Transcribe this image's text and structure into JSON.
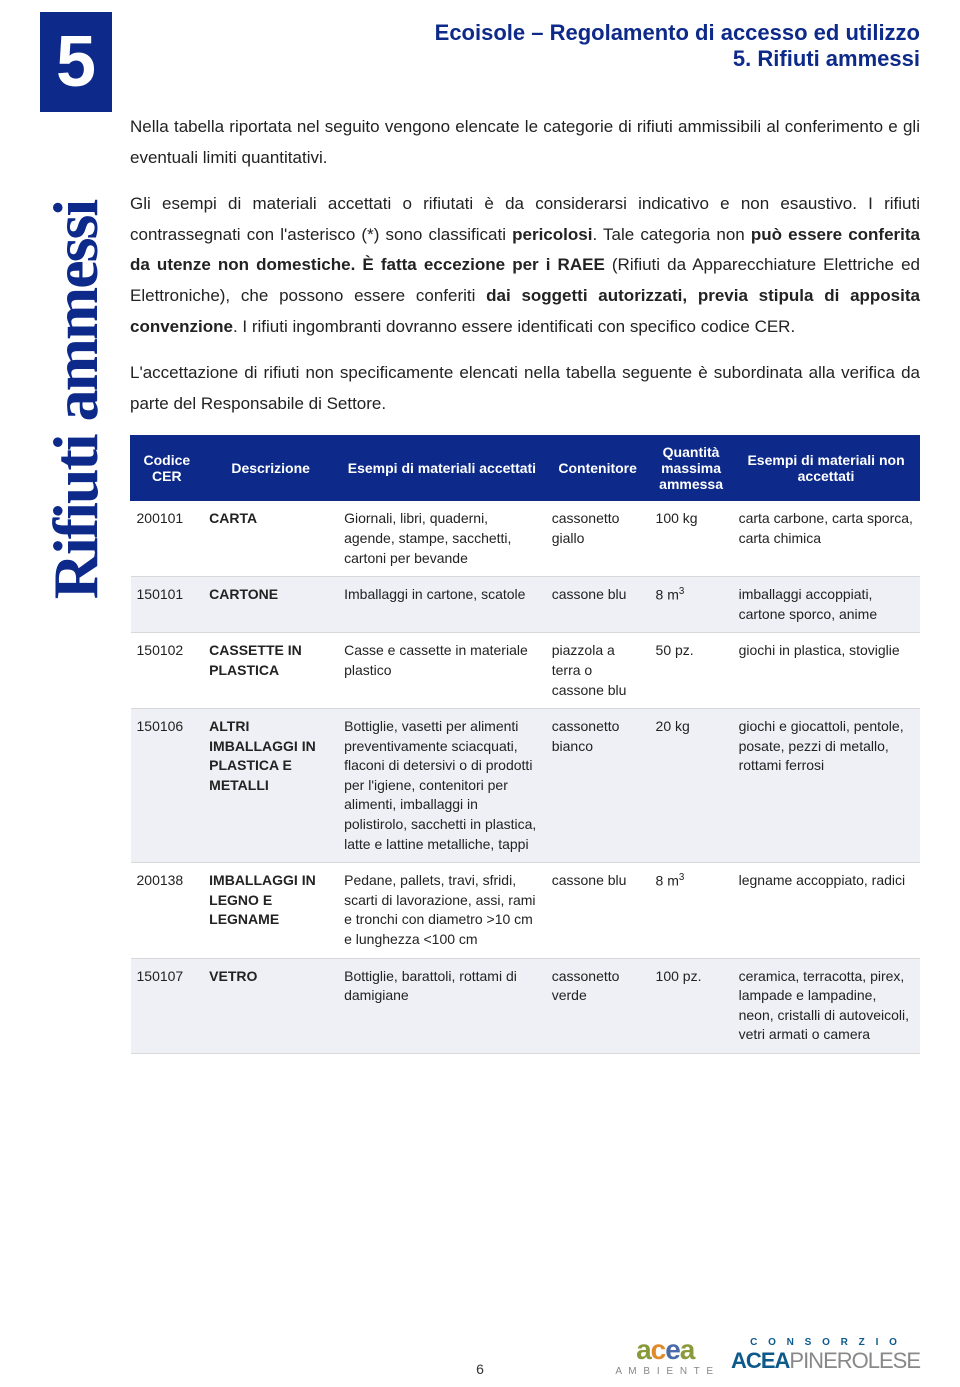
{
  "colors": {
    "brand_blue": "#0d2a8a",
    "row_alt_bg": "#eef0f6",
    "border": "#d8d8d8",
    "text": "#222222",
    "logo_green": "#8a9a3a",
    "logo_orange": "#e08a2a",
    "logo_lightblue": "#4a6aa8",
    "logo_consblue": "#0d5a8a"
  },
  "chapter_number": "5",
  "header": {
    "line1": "Ecoisole – Regolamento di accesso ed utilizzo",
    "line2": "5. Rifiuti ammessi"
  },
  "vertical_title": "Rifiuti ammessi",
  "paragraphs": {
    "p1": "Nella tabella riportata nel seguito vengono elencate le categorie di rifiuti ammissibili al conferimento e gli eventuali limiti quantitativi.",
    "p2_pre": "Gli esempi di materiali accettati o rifiutati è da considerarsi indicativo e non esaustivo. I rifiuti contrassegnati con l'asterisco (*) sono classificati ",
    "p2_bold1": "pericolosi",
    "p2_mid1": ". Tale categoria non ",
    "p2_bold2": "può essere conferita da utenze non domestiche. È fatta eccezione per i RAEE ",
    "p2_mid2": "(Rifiuti da Apparecchiature Elettriche ed Elettroniche), che possono essere conferiti ",
    "p2_bold3": "dai soggetti autorizzati, previa stipula di apposita convenzione",
    "p2_end": ". I rifiuti ingombranti dovranno essere identificati con specifico codice CER.",
    "p3": "L'accettazione di rifiuti non specificamente elencati nella tabella seguente è subordinata alla verifica da parte del Responsabile di Settore."
  },
  "table": {
    "columns": [
      "Codice CER",
      "Descrizione",
      "Esempi di materiali accettati",
      "Contenitore",
      "Quantità massima ammessa",
      "Esempi di materiali non accettati"
    ],
    "rows": [
      {
        "code": "200101",
        "desc": "CARTA",
        "accepted": "Giornali, libri, quaderni, agende, stampe, sacchetti, cartoni per bevande",
        "container": "cassonetto giallo",
        "qty": "100 kg",
        "rejected": "carta carbone, carta sporca, carta chimica"
      },
      {
        "code": "150101",
        "desc": "CARTONE",
        "accepted": "Imballaggi in cartone, scatole",
        "container": "cassone blu",
        "qty": "8 m³",
        "rejected": "imballaggi accoppiati, cartone sporco, anime"
      },
      {
        "code": "150102",
        "desc": "CASSETTE IN PLASTICA",
        "accepted": "Casse e cassette in materiale plastico",
        "container": "piazzola a terra o cassone blu",
        "qty": "50 pz.",
        "rejected": "giochi in plastica, stoviglie"
      },
      {
        "code": "150106",
        "desc": "ALTRI IMBALLAGGI IN PLASTICA E METALLI",
        "accepted": "Bottiglie, vasetti per alimenti preventivamente sciacquati, flaconi di detersivi o di prodotti per l'igiene, contenitori per alimenti, imballaggi in polistirolo, sacchetti in plastica, latte e lattine metalliche, tappi",
        "container": "cassonetto bianco",
        "qty": "20 kg",
        "rejected": "giochi e giocattoli, pentole, posate, pezzi di metallo, rottami ferrosi"
      },
      {
        "code": "200138",
        "desc": "IMBALLAGGI IN LEGNO E LEGNAME",
        "accepted": "Pedane, pallets, travi, sfridi, scarti di lavorazione, assi, rami e tronchi con diametro >10 cm e lunghezza <100 cm",
        "container": "cassone blu",
        "qty": "8 m³",
        "rejected": "legname accoppiato, radici"
      },
      {
        "code": "150107",
        "desc": "VETRO",
        "accepted": "Bottiglie, barattoli, rottami di damigiane",
        "container": "cassonetto verde",
        "qty": "100 pz.",
        "rejected": "ceramica, terracotta, pirex, lampade e lampadine, neon, cristalli di autoveicoli, vetri armati o camera"
      }
    ]
  },
  "page_number": "6",
  "logos": {
    "acea_sub": "A M B I E N T E",
    "consorzio": "C O N S O R Z I O",
    "acea_big": "ACEA",
    "pinerolese": "PINEROLESE"
  }
}
